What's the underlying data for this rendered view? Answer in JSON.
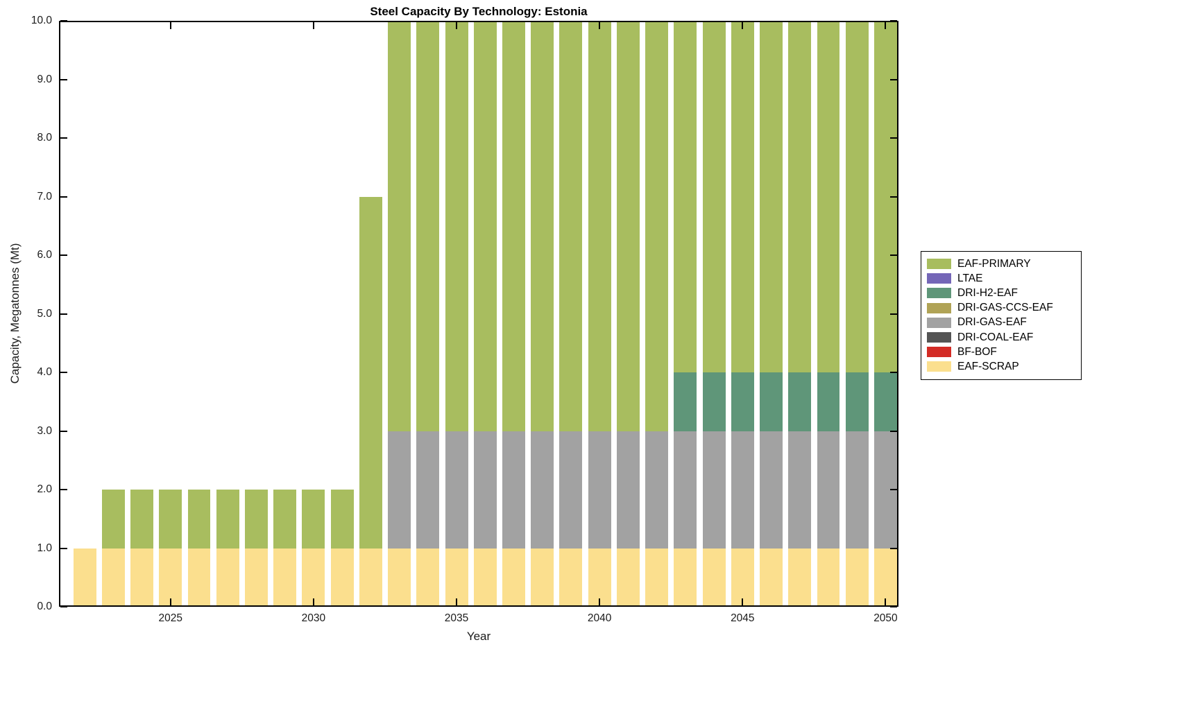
{
  "chart_data": {
    "type": "bar",
    "stacked": true,
    "title": "Steel Capacity By Technology: Estonia",
    "xlabel": "Year",
    "ylabel": "Capacity, Megatonnes (Mt)",
    "ylim": [
      0,
      10
    ],
    "xlim": [
      2021.1,
      2050.45
    ],
    "bar_width_years": 0.8,
    "grid": false,
    "legend_position": "right-outside",
    "ytick_values": [
      0,
      1,
      2,
      3,
      4,
      5,
      6,
      7,
      8,
      9,
      10
    ],
    "ytick_labels": [
      "0.0",
      "1.0",
      "2.0",
      "3.0",
      "4.0",
      "5.0",
      "6.0",
      "7.0",
      "8.0",
      "9.0",
      "10.0"
    ],
    "xtick_values": [
      2025,
      2030,
      2035,
      2040,
      2045,
      2050
    ],
    "xtick_labels": [
      "2025",
      "2030",
      "2035",
      "2040",
      "2045",
      "2050"
    ],
    "years": [
      2022,
      2023,
      2024,
      2025,
      2026,
      2027,
      2028,
      2029,
      2030,
      2031,
      2032,
      2033,
      2034,
      2035,
      2036,
      2037,
      2038,
      2039,
      2040,
      2041,
      2042,
      2043,
      2044,
      2045,
      2046,
      2047,
      2048,
      2049,
      2050
    ],
    "series": [
      {
        "name": "EAF-SCRAP",
        "color": "#fbdf8e",
        "values": [
          1,
          1,
          1,
          1,
          1,
          1,
          1,
          1,
          1,
          1,
          1,
          1,
          1,
          1,
          1,
          1,
          1,
          1,
          1,
          1,
          1,
          1,
          1,
          1,
          1,
          1,
          1,
          1,
          1
        ]
      },
      {
        "name": "BF-BOF",
        "color": "#d32b25",
        "values": [
          0,
          0,
          0,
          0,
          0,
          0,
          0,
          0,
          0,
          0,
          0,
          0,
          0,
          0,
          0,
          0,
          0,
          0,
          0,
          0,
          0,
          0,
          0,
          0,
          0,
          0,
          0,
          0,
          0
        ]
      },
      {
        "name": "DRI-COAL-EAF",
        "color": "#545454",
        "values": [
          0,
          0,
          0,
          0,
          0,
          0,
          0,
          0,
          0,
          0,
          0,
          0,
          0,
          0,
          0,
          0,
          0,
          0,
          0,
          0,
          0,
          0,
          0,
          0,
          0,
          0,
          0,
          0,
          0
        ]
      },
      {
        "name": "DRI-GAS-EAF",
        "color": "#a2a2a2",
        "values": [
          0,
          0,
          0,
          0,
          0,
          0,
          0,
          0,
          0,
          0,
          0,
          2,
          2,
          2,
          2,
          2,
          2,
          2,
          2,
          2,
          2,
          2,
          2,
          2,
          2,
          2,
          2,
          2,
          2
        ]
      },
      {
        "name": "DRI-GAS-CCS-EAF",
        "color": "#b0a356",
        "values": [
          0,
          0,
          0,
          0,
          0,
          0,
          0,
          0,
          0,
          0,
          0,
          0,
          0,
          0,
          0,
          0,
          0,
          0,
          0,
          0,
          0,
          0,
          0,
          0,
          0,
          0,
          0,
          0,
          0
        ]
      },
      {
        "name": "DRI-H2-EAF",
        "color": "#5f9679",
        "values": [
          0,
          0,
          0,
          0,
          0,
          0,
          0,
          0,
          0,
          0,
          0,
          0,
          0,
          0,
          0,
          0,
          0,
          0,
          0,
          0,
          0,
          1,
          1,
          1,
          1,
          1,
          1,
          1,
          1
        ]
      },
      {
        "name": "LTAE",
        "color": "#7466b7",
        "values": [
          0,
          0,
          0,
          0,
          0,
          0,
          0,
          0,
          0,
          0,
          0,
          0,
          0,
          0,
          0,
          0,
          0,
          0,
          0,
          0,
          0,
          0,
          0,
          0,
          0,
          0,
          0,
          0,
          0
        ]
      },
      {
        "name": "EAF-PRIMARY",
        "color": "#a8bd5f",
        "values": [
          0,
          1,
          1,
          1,
          1,
          1,
          1,
          1,
          1,
          1,
          6,
          7,
          7,
          7,
          7,
          7,
          7,
          7,
          7,
          7,
          7,
          6,
          6,
          6,
          6,
          6,
          6,
          6,
          6
        ]
      }
    ]
  }
}
